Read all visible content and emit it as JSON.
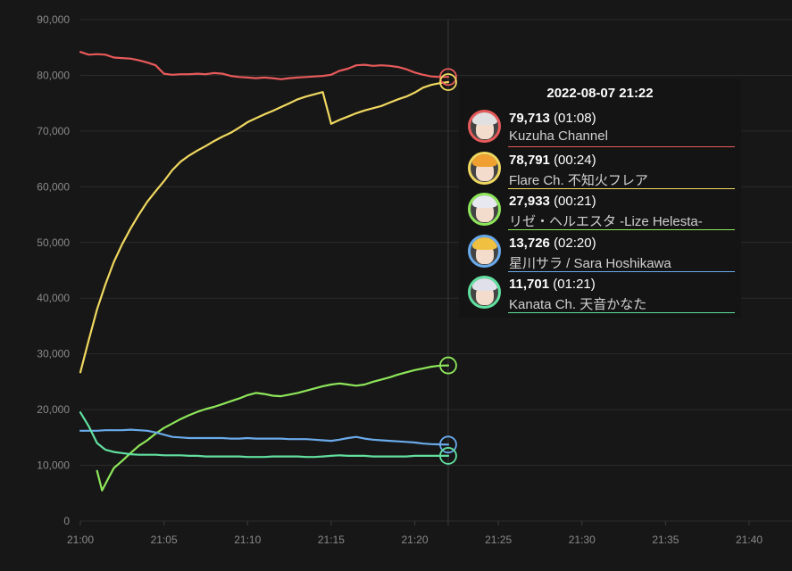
{
  "chart_data": {
    "type": "line",
    "x_axis": {
      "ticks": [
        "21:00",
        "21:05",
        "21:10",
        "21:15",
        "21:20",
        "21:25",
        "21:30",
        "21:35",
        "21:40"
      ],
      "range_minutes": [
        0,
        40
      ]
    },
    "y_axis": {
      "ticks": [
        "0",
        "10,000",
        "20,000",
        "30,000",
        "40,000",
        "50,000",
        "60,000",
        "70,000",
        "80,000",
        "90,000"
      ],
      "ylim": [
        0,
        90000
      ]
    },
    "grid": true,
    "hover_marker_minute": 22,
    "series": [
      {
        "name": "Kuzuha Channel",
        "color": "#e85a5a",
        "x": [
          0,
          0.5,
          1,
          1.5,
          2,
          2.5,
          3,
          3.5,
          4,
          4.5,
          5,
          5.5,
          6,
          6.5,
          7,
          7.5,
          8,
          8.5,
          9,
          9.5,
          10,
          10.5,
          11,
          11.5,
          12,
          12.5,
          13,
          13.5,
          14,
          14.5,
          15,
          15.5,
          16,
          16.5,
          17,
          17.5,
          18,
          18.5,
          19,
          19.5,
          20,
          20.5,
          21,
          21.5,
          22
        ],
        "y": [
          84200,
          83700,
          83800,
          83700,
          83200,
          83100,
          83000,
          82700,
          82300,
          81800,
          80300,
          80100,
          80200,
          80200,
          80300,
          80200,
          80400,
          80300,
          79900,
          79700,
          79600,
          79500,
          79600,
          79500,
          79300,
          79500,
          79600,
          79700,
          79800,
          79900,
          80100,
          80800,
          81200,
          81800,
          81900,
          81700,
          81800,
          81700,
          81500,
          81100,
          80500,
          80100,
          79800,
          79700,
          79713
        ]
      },
      {
        "name": "Flare Ch. 不知火フレア",
        "color": "#f0d860",
        "x": [
          0,
          0.5,
          1,
          1.5,
          2,
          2.5,
          3,
          3.5,
          4,
          4.5,
          5,
          5.5,
          6,
          6.5,
          7,
          7.5,
          8,
          8.5,
          9,
          9.5,
          10,
          10.5,
          11,
          11.5,
          12,
          12.5,
          13,
          13.5,
          14,
          14.5,
          15,
          15.5,
          16,
          16.5,
          17,
          17.5,
          18,
          18.5,
          19,
          19.5,
          20,
          20.5,
          21,
          21.5,
          22
        ],
        "y": [
          26700,
          32500,
          38000,
          42500,
          46500,
          49700,
          52500,
          55000,
          57300,
          59200,
          61000,
          63000,
          64500,
          65600,
          66500,
          67300,
          68200,
          69000,
          69700,
          70600,
          71600,
          72300,
          73000,
          73600,
          74300,
          75000,
          75700,
          76200,
          76600,
          77000,
          71300,
          72000,
          72600,
          73200,
          73700,
          74100,
          74500,
          75100,
          75700,
          76200,
          76900,
          77800,
          78300,
          78600,
          78791
        ]
      },
      {
        "name": "リゼ・ヘルエスタ -Lize Helesta-",
        "color": "#8ee65a",
        "x": [
          1,
          1.3,
          1.7,
          2,
          2.5,
          3,
          3.5,
          4,
          4.5,
          5,
          5.5,
          6,
          6.5,
          7,
          7.5,
          8,
          8.5,
          9,
          9.5,
          10,
          10.5,
          11,
          11.5,
          12,
          12.5,
          13,
          13.5,
          14,
          14.5,
          15,
          15.5,
          16,
          16.5,
          17,
          17.5,
          18,
          18.5,
          19,
          19.5,
          20,
          20.5,
          21,
          21.5,
          22
        ],
        "y": [
          9000,
          5500,
          7800,
          9500,
          10800,
          12200,
          13500,
          14500,
          15700,
          16700,
          17500,
          18300,
          19000,
          19600,
          20100,
          20500,
          21000,
          21500,
          22000,
          22600,
          23000,
          22800,
          22500,
          22400,
          22700,
          23000,
          23400,
          23800,
          24200,
          24500,
          24700,
          24500,
          24300,
          24500,
          25000,
          25400,
          25800,
          26300,
          26700,
          27100,
          27400,
          27700,
          27900,
          27933
        ]
      },
      {
        "name": "星川サラ / Sara Hoshikawa",
        "color": "#6aabeb",
        "x": [
          0,
          0.5,
          1,
          1.5,
          2,
          2.5,
          3,
          3.5,
          4,
          4.5,
          5,
          5.5,
          6,
          6.5,
          7,
          7.5,
          8,
          8.5,
          9,
          9.5,
          10,
          10.5,
          11,
          11.5,
          12,
          12.5,
          13,
          13.5,
          14,
          14.5,
          15,
          15.5,
          16,
          16.5,
          17,
          17.5,
          18,
          18.5,
          19,
          19.5,
          20,
          20.5,
          21,
          21.5,
          22
        ],
        "y": [
          16200,
          16200,
          16200,
          16300,
          16300,
          16300,
          16400,
          16300,
          16200,
          15900,
          15500,
          15100,
          15000,
          14900,
          14900,
          14900,
          14900,
          14900,
          14800,
          14800,
          14900,
          14800,
          14800,
          14800,
          14800,
          14700,
          14700,
          14700,
          14600,
          14500,
          14400,
          14600,
          14900,
          15100,
          14800,
          14600,
          14500,
          14400,
          14300,
          14200,
          14100,
          13900,
          13800,
          13750,
          13726
        ]
      },
      {
        "name": "Kanata Ch. 天音かなた",
        "color": "#62e0a0",
        "x": [
          0,
          0.5,
          1,
          1.5,
          2,
          2.5,
          3,
          3.5,
          4,
          4.5,
          5,
          5.5,
          6,
          6.5,
          7,
          7.5,
          8,
          8.5,
          9,
          9.5,
          10,
          10.5,
          11,
          11.5,
          12,
          12.5,
          13,
          13.5,
          14,
          14.5,
          15,
          15.5,
          16,
          16.5,
          17,
          17.5,
          18,
          18.5,
          19,
          19.5,
          20,
          20.5,
          21,
          21.5,
          22
        ],
        "y": [
          19500,
          17000,
          14000,
          12800,
          12400,
          12200,
          12000,
          11900,
          11900,
          11900,
          11800,
          11800,
          11800,
          11700,
          11700,
          11600,
          11600,
          11600,
          11600,
          11600,
          11500,
          11500,
          11500,
          11600,
          11600,
          11600,
          11600,
          11500,
          11500,
          11600,
          11700,
          11800,
          11700,
          11700,
          11700,
          11600,
          11600,
          11600,
          11600,
          11600,
          11700,
          11700,
          11700,
          11700,
          11701
        ]
      }
    ]
  },
  "tooltip": {
    "title": "2022-08-07 21:22",
    "rows": [
      {
        "value": "79,713",
        "duration": "(01:08)",
        "name": "Kuzuha Channel",
        "color": "#e85a5a",
        "hair": "#e0e0e0"
      },
      {
        "value": "78,791",
        "duration": "(00:24)",
        "name": "Flare Ch. 不知火フレア",
        "color": "#f0d860",
        "hair": "#f0a030"
      },
      {
        "value": "27,933",
        "duration": "(00:21)",
        "name": "リゼ・ヘルエスタ -Lize Helesta-",
        "color": "#8ee65a",
        "hair": "#e8e8f0"
      },
      {
        "value": "13,726",
        "duration": "(02:20)",
        "name": "星川サラ / Sara Hoshikawa",
        "color": "#6aabeb",
        "hair": "#f0c040"
      },
      {
        "value": "11,701",
        "duration": "(01:21)",
        "name": "Kanata Ch. 天音かなた",
        "color": "#62e0a0",
        "hair": "#e0e0ea"
      }
    ]
  }
}
